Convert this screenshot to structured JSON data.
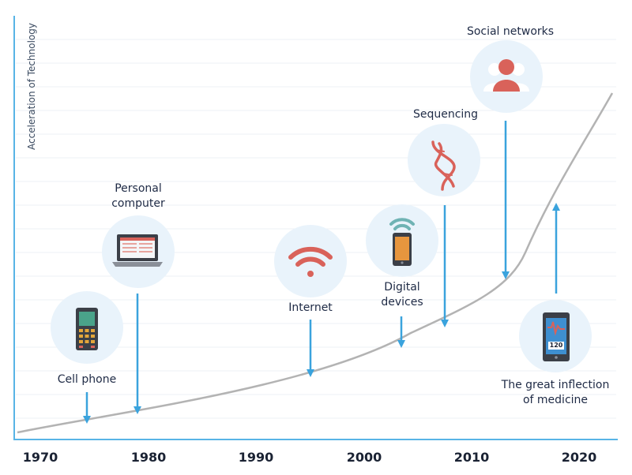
{
  "axis": {
    "y_label": "Acceleration of Technology",
    "x_ticks": [
      "1970",
      "1980",
      "1990",
      "2000",
      "2010",
      "2020"
    ]
  },
  "milestones": [
    {
      "id": "cell-phone",
      "label": "Cell phone",
      "icon": "cell-phone-icon"
    },
    {
      "id": "personal-computer",
      "label": "Personal\ncomputer",
      "icon": "laptop-icon"
    },
    {
      "id": "internet",
      "label": "Internet",
      "icon": "wifi-icon"
    },
    {
      "id": "digital-devices",
      "label": "Digital\ndevices",
      "icon": "smartphone-icon"
    },
    {
      "id": "sequencing",
      "label": "Sequencing",
      "icon": "dna-icon"
    },
    {
      "id": "social-networks",
      "label": "Social networks",
      "icon": "people-icon"
    },
    {
      "id": "medicine",
      "label": "The great inflection\nof medicine",
      "icon": "medical-tablet-icon"
    }
  ],
  "colors": {
    "circle": "#e9f3fb",
    "arrow": "#3aa3dd",
    "curve": "#b3b3b3",
    "grid": "#eef1f4",
    "axis": "#58b4e6",
    "icon_red": "#d9625a",
    "icon_dark": "#3b3f47"
  }
}
